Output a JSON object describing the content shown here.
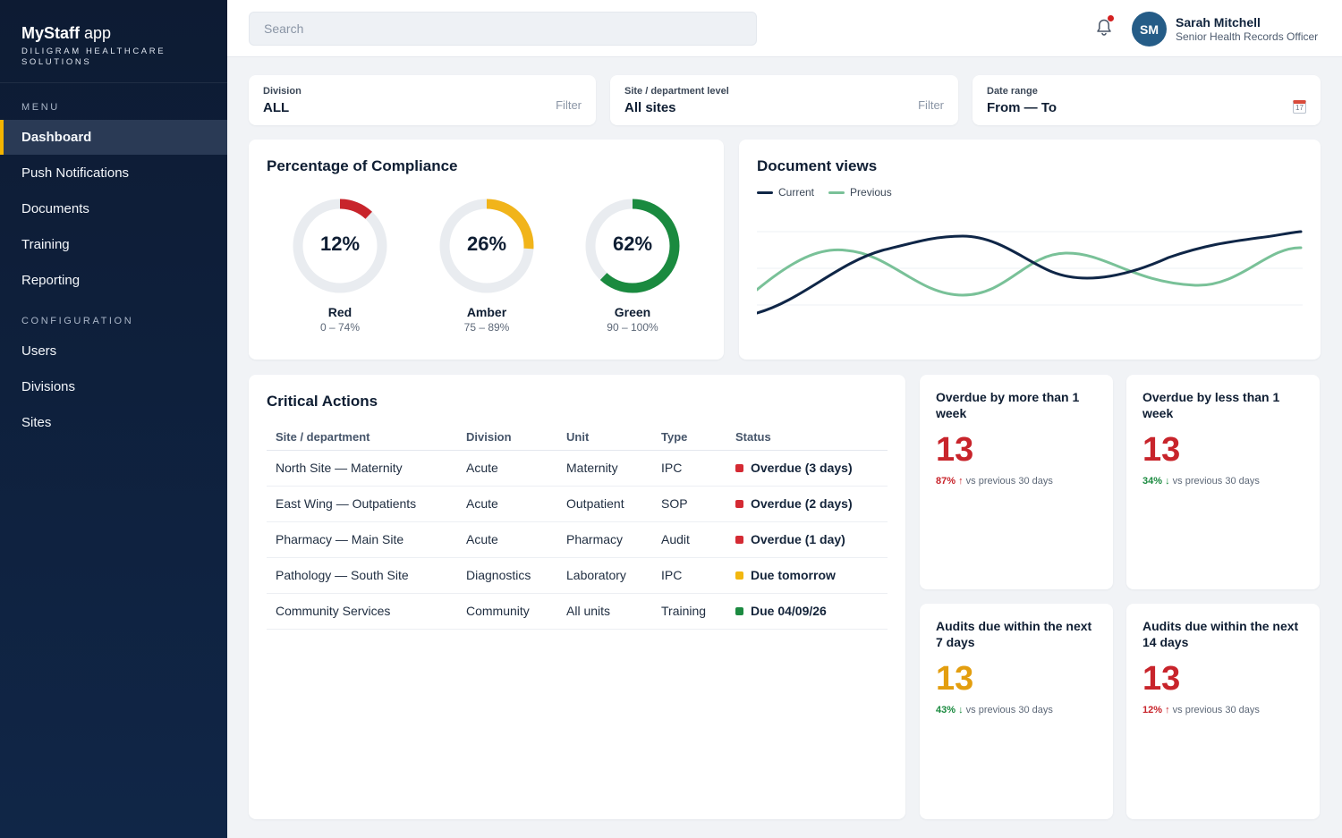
{
  "app": {
    "name_bold": "MyStaff",
    "name_rest": " app",
    "subtitle": "DILIGRAM HEALTHCARE SOLUTIONS"
  },
  "sidebar": {
    "menu_label": "MENU",
    "menu_items": [
      {
        "label": "Dashboard"
      },
      {
        "label": "Push Notifications"
      },
      {
        "label": "Documents"
      },
      {
        "label": "Training"
      },
      {
        "label": "Reporting"
      }
    ],
    "config_label": "CONFIGURATION",
    "config_items": [
      {
        "label": "Users"
      },
      {
        "label": "Divisions"
      },
      {
        "label": "Sites"
      }
    ]
  },
  "header": {
    "search_placeholder": "Search",
    "user": {
      "initials": "SM",
      "name": "Sarah Mitchell",
      "role": "Senior Health Records Officer"
    }
  },
  "filters": {
    "division": {
      "label": "Division",
      "value": "ALL",
      "action": "Filter"
    },
    "site": {
      "label": "Site / department level",
      "value": "All sites",
      "action": "Filter"
    },
    "date": {
      "label": "Date range",
      "value": "From — To",
      "icon": "calendar-icon",
      "icon_text": "17"
    }
  },
  "compliance": {
    "title": "Percentage of Compliance",
    "gauges": [
      {
        "value": "12%",
        "pct": 12,
        "name": "Red",
        "range": "0 – 74%",
        "color": "#c8242b"
      },
      {
        "value": "26%",
        "pct": 26,
        "name": "Amber",
        "range": "75 – 89%",
        "color": "#f1b41a"
      },
      {
        "value": "62%",
        "pct": 62,
        "name": "Green",
        "range": "90 – 100%",
        "color": "#1a8a3f"
      }
    ]
  },
  "document_views": {
    "title": "Document views",
    "legend": [
      {
        "name": "Current",
        "color": "#0f2647"
      },
      {
        "name": "Previous",
        "color": "#79c198"
      }
    ]
  },
  "critical_actions": {
    "title": "Critical Actions",
    "headers": [
      "Site / department",
      "Division",
      "Unit",
      "Type",
      "Status"
    ],
    "rows": [
      {
        "site": "North Site — Maternity",
        "division": "Acute",
        "unit": "Maternity",
        "type": "IPC",
        "status": "Overdue (3 days)",
        "color": "#d42a33"
      },
      {
        "site": "East Wing — Outpatients",
        "division": "Acute",
        "unit": "Outpatient",
        "type": "SOP",
        "status": "Overdue (2 days)",
        "color": "#d42a33"
      },
      {
        "site": "Pharmacy — Main Site",
        "division": "Acute",
        "unit": "Pharmacy",
        "type": "Audit",
        "status": "Overdue (1 day)",
        "color": "#d42a33"
      },
      {
        "site": "Pathology — South Site",
        "division": "Diagnostics",
        "unit": "Laboratory",
        "type": "IPC",
        "status": "Due tomorrow",
        "color": "#f2b70f"
      },
      {
        "site": "Community Services",
        "division": "Community",
        "unit": "All units",
        "type": "Training",
        "status": "Due 04/09/26",
        "color": "#1c8a41"
      }
    ]
  },
  "stats": [
    {
      "title": "Overdue by more than 1 week",
      "value": "13",
      "value_color": "#c8242b",
      "pct": "87%",
      "arrow": "↑",
      "cmp_color": "#c8242b",
      "cmp_text": " vs previous 30 days"
    },
    {
      "title": "Overdue by less than 1 week",
      "value": "13",
      "value_color": "#c8242b",
      "pct": "34%",
      "arrow": "↓",
      "cmp_color": "#1a8a3f",
      "cmp_text": " vs previous 30 days"
    },
    {
      "title": "Audits due within the next 7 days",
      "value": "13",
      "value_color": "#e39e0f",
      "pct": "43%",
      "arrow": "↓",
      "cmp_color": "#1a8a3f",
      "cmp_text": " vs previous 30 days"
    },
    {
      "title": "Audits due within the next 14 days",
      "value": "13",
      "value_color": "#c8242b",
      "pct": "12%",
      "arrow": "↑",
      "cmp_color": "#c8242b",
      "cmp_text": " vs previous 30 days"
    }
  ]
}
